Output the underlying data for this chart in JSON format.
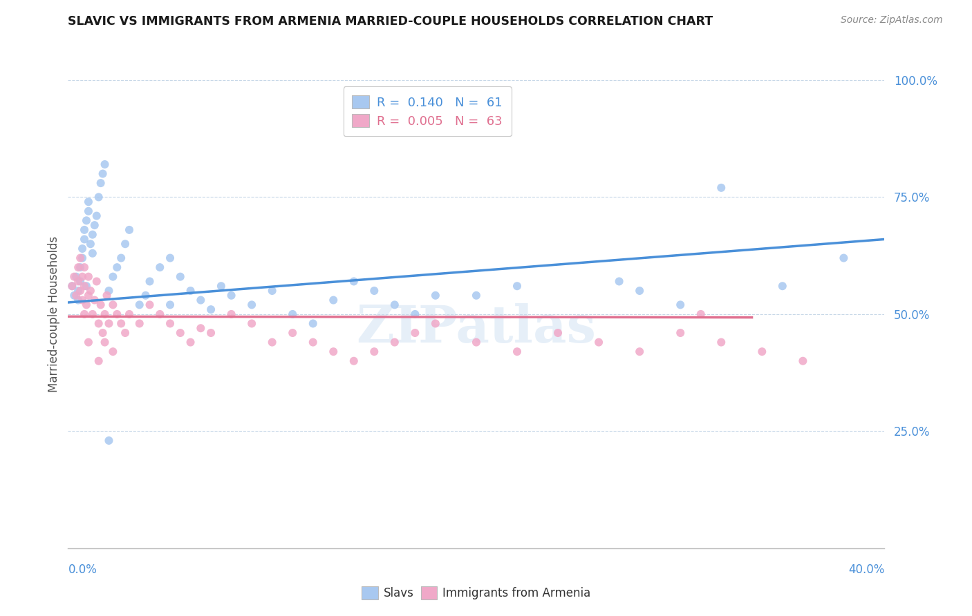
{
  "title": "SLAVIC VS IMMIGRANTS FROM ARMENIA MARRIED-COUPLE HOUSEHOLDS CORRELATION CHART",
  "source": "Source: ZipAtlas.com",
  "ylabel": "Married-couple Households",
  "xmin": 0.0,
  "xmax": 0.4,
  "ymin": 0.0,
  "ymax": 1.0,
  "legend_slavs_R": "0.140",
  "legend_slavs_N": "61",
  "legend_armenia_R": "0.005",
  "legend_armenia_N": "63",
  "slavs_color": "#a8c8f0",
  "armenia_color": "#f0a8c8",
  "line_slavs_color": "#4a90d9",
  "line_armenia_color": "#e07090",
  "grid_color": "#c8d8e8",
  "watermark": "ZIPatlas",
  "slavs_x": [
    0.002,
    0.003,
    0.004,
    0.005,
    0.005,
    0.006,
    0.006,
    0.007,
    0.007,
    0.008,
    0.008,
    0.009,
    0.009,
    0.01,
    0.01,
    0.011,
    0.012,
    0.012,
    0.013,
    0.014,
    0.015,
    0.016,
    0.017,
    0.018,
    0.02,
    0.022,
    0.024,
    0.026,
    0.028,
    0.03,
    0.035,
    0.04,
    0.045,
    0.05,
    0.055,
    0.06,
    0.065,
    0.07,
    0.075,
    0.08,
    0.09,
    0.1,
    0.11,
    0.12,
    0.13,
    0.14,
    0.15,
    0.16,
    0.17,
    0.18,
    0.2,
    0.22,
    0.27,
    0.28,
    0.3,
    0.32,
    0.35,
    0.38,
    0.038,
    0.05,
    0.02
  ],
  "slavs_y": [
    0.56,
    0.54,
    0.58,
    0.55,
    0.53,
    0.6,
    0.57,
    0.62,
    0.64,
    0.66,
    0.68,
    0.56,
    0.7,
    0.72,
    0.74,
    0.65,
    0.67,
    0.63,
    0.69,
    0.71,
    0.75,
    0.78,
    0.8,
    0.82,
    0.55,
    0.58,
    0.6,
    0.62,
    0.65,
    0.68,
    0.52,
    0.57,
    0.6,
    0.62,
    0.58,
    0.55,
    0.53,
    0.51,
    0.56,
    0.54,
    0.52,
    0.55,
    0.5,
    0.48,
    0.53,
    0.57,
    0.55,
    0.52,
    0.5,
    0.54,
    0.54,
    0.56,
    0.57,
    0.55,
    0.52,
    0.77,
    0.56,
    0.62,
    0.54,
    0.52,
    0.23
  ],
  "armenia_x": [
    0.002,
    0.003,
    0.004,
    0.005,
    0.005,
    0.006,
    0.006,
    0.007,
    0.007,
    0.008,
    0.008,
    0.009,
    0.01,
    0.01,
    0.011,
    0.012,
    0.013,
    0.014,
    0.015,
    0.016,
    0.017,
    0.018,
    0.019,
    0.02,
    0.022,
    0.024,
    0.026,
    0.028,
    0.03,
    0.035,
    0.04,
    0.045,
    0.05,
    0.055,
    0.06,
    0.065,
    0.07,
    0.08,
    0.09,
    0.1,
    0.11,
    0.12,
    0.13,
    0.14,
    0.15,
    0.16,
    0.17,
    0.18,
    0.2,
    0.22,
    0.24,
    0.26,
    0.28,
    0.3,
    0.32,
    0.34,
    0.36,
    0.018,
    0.022,
    0.015,
    0.01,
    0.008,
    0.31
  ],
  "armenia_y": [
    0.56,
    0.58,
    0.54,
    0.6,
    0.57,
    0.55,
    0.62,
    0.58,
    0.53,
    0.56,
    0.6,
    0.52,
    0.54,
    0.58,
    0.55,
    0.5,
    0.53,
    0.57,
    0.48,
    0.52,
    0.46,
    0.5,
    0.54,
    0.48,
    0.52,
    0.5,
    0.48,
    0.46,
    0.5,
    0.48,
    0.52,
    0.5,
    0.48,
    0.46,
    0.44,
    0.47,
    0.46,
    0.5,
    0.48,
    0.44,
    0.46,
    0.44,
    0.42,
    0.4,
    0.42,
    0.44,
    0.46,
    0.48,
    0.44,
    0.42,
    0.46,
    0.44,
    0.42,
    0.46,
    0.44,
    0.42,
    0.4,
    0.44,
    0.42,
    0.4,
    0.44,
    0.5,
    0.5
  ],
  "slavs_line_x0": 0.0,
  "slavs_line_x1": 0.4,
  "slavs_line_y0": 0.525,
  "slavs_line_y1": 0.66,
  "armenia_line_x0": 0.0,
  "armenia_line_x1": 0.335,
  "armenia_line_y0": 0.495,
  "armenia_line_y1": 0.493
}
